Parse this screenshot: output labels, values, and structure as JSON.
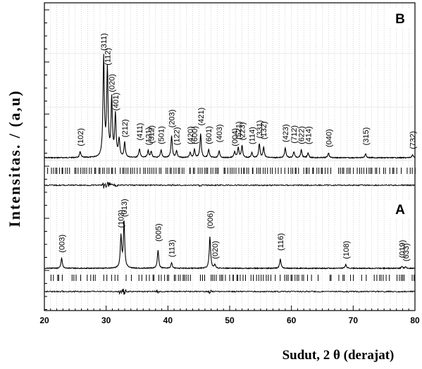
{
  "chart_data": {
    "type": "line",
    "xlabel": "Sudut, 2 θ (derajat)",
    "ylabel": "Intensitas. / (a,u)",
    "xlim": [
      20,
      80
    ],
    "x_ticks": [
      20,
      30,
      40,
      50,
      60,
      70,
      80
    ],
    "grid": true,
    "panels": [
      {
        "label": "B",
        "peaks": [
          {
            "x": 25.8,
            "intensity": 0.06,
            "label": "(102)"
          },
          {
            "x": 29.6,
            "intensity": 1.0,
            "label": "(311)"
          },
          {
            "x": 30.2,
            "intensity": 0.88,
            "label": "(112)"
          },
          {
            "x": 30.9,
            "intensity": 0.58,
            "label": "(020)"
          },
          {
            "x": 31.5,
            "intensity": 0.42,
            "label": "(401)"
          },
          {
            "x": 32.1,
            "intensity": 0.18,
            "label": ""
          },
          {
            "x": 33.0,
            "intensity": 0.15,
            "label": "(212)"
          },
          {
            "x": 35.4,
            "intensity": 0.09,
            "label": "(411)"
          },
          {
            "x": 36.8,
            "intensity": 0.07,
            "label": "(121)"
          },
          {
            "x": 37.3,
            "intensity": 0.06,
            "label": "(312)"
          },
          {
            "x": 38.9,
            "intensity": 0.08,
            "label": "(501)"
          },
          {
            "x": 40.6,
            "intensity": 0.22,
            "label": "(203)"
          },
          {
            "x": 41.4,
            "intensity": 0.07,
            "label": "(122)"
          },
          {
            "x": 43.6,
            "intensity": 0.05,
            "label": "(420)"
          },
          {
            "x": 44.3,
            "intensity": 0.08,
            "label": "(600)"
          },
          {
            "x": 45.3,
            "intensity": 0.24,
            "label": "(421)"
          },
          {
            "x": 46.6,
            "intensity": 0.08,
            "label": "(601)"
          },
          {
            "x": 48.3,
            "intensity": 0.07,
            "label": "(403)"
          },
          {
            "x": 50.8,
            "intensity": 0.06,
            "label": "(004)"
          },
          {
            "x": 51.4,
            "intensity": 0.1,
            "label": "(521)"
          },
          {
            "x": 52.0,
            "intensity": 0.12,
            "label": "(223)"
          },
          {
            "x": 53.6,
            "intensity": 0.05,
            "label": "(114)"
          },
          {
            "x": 54.8,
            "intensity": 0.14,
            "label": "(331)"
          },
          {
            "x": 55.5,
            "intensity": 0.1,
            "label": "(132)"
          },
          {
            "x": 59.0,
            "intensity": 0.1,
            "label": "(423)"
          },
          {
            "x": 60.4,
            "intensity": 0.06,
            "label": "(712)"
          },
          {
            "x": 61.6,
            "intensity": 0.08,
            "label": "(622)"
          },
          {
            "x": 62.7,
            "intensity": 0.05,
            "label": "(414)"
          },
          {
            "x": 66.0,
            "intensity": 0.05,
            "label": "(040)"
          },
          {
            "x": 72.0,
            "intensity": 0.04,
            "label": "(315)"
          },
          {
            "x": 79.6,
            "intensity": 0.03,
            "label": "(732)"
          }
        ]
      },
      {
        "label": "A",
        "peaks": [
          {
            "x": 22.8,
            "intensity": 0.22,
            "label": "(003)"
          },
          {
            "x": 32.4,
            "intensity": 0.7,
            "label": "(103)"
          },
          {
            "x": 32.9,
            "intensity": 1.0,
            "label": "(013)"
          },
          {
            "x": 38.4,
            "intensity": 0.4,
            "label": "(005)"
          },
          {
            "x": 40.6,
            "intensity": 0.12,
            "label": "(113)"
          },
          {
            "x": 46.8,
            "intensity": 0.68,
            "label": "(006)"
          },
          {
            "x": 47.6,
            "intensity": 0.08,
            "label": "(020)"
          },
          {
            "x": 58.2,
            "intensity": 0.2,
            "label": "(116)"
          },
          {
            "x": 68.8,
            "intensity": 0.08,
            "label": "(108)"
          },
          {
            "x": 77.9,
            "intensity": 0.04,
            "label": "(019)"
          },
          {
            "x": 78.5,
            "intensity": 0.03,
            "label": "(033)"
          }
        ]
      }
    ]
  }
}
